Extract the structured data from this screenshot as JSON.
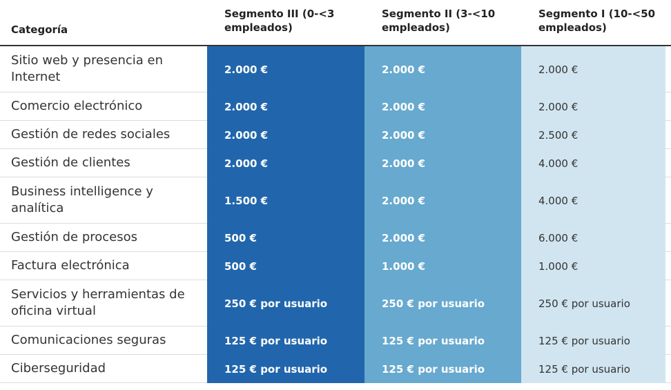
{
  "colors": {
    "segment_iii": "#2166ac",
    "segment_ii": "#67a9cf",
    "segment_i": "#d1e5f0"
  },
  "header": {
    "category": "Categoría",
    "segment_iii": "Segmento III (0-<3 empleados)",
    "segment_ii": "Segmento II (3-<10 empleados)",
    "segment_i": "Segmento I (10-<50 empleados)"
  },
  "rows": [
    {
      "category": "Sitio web y presencia en Internet",
      "segment_iii": "2.000 €",
      "segment_ii": "2.000 €",
      "segment_i": "2.000 €"
    },
    {
      "category": "Comercio electrónico",
      "segment_iii": "2.000 €",
      "segment_ii": "2.000 €",
      "segment_i": "2.000 €"
    },
    {
      "category": "Gestión de redes sociales",
      "segment_iii": "2.000 €",
      "segment_ii": "2.000 €",
      "segment_i": "2.500 €"
    },
    {
      "category": "Gestión de clientes",
      "segment_iii": "2.000 €",
      "segment_ii": "2.000 €",
      "segment_i": "4.000 €"
    },
    {
      "category": "Business intelligence y analítica",
      "segment_iii": "1.500 €",
      "segment_ii": "2.000 €",
      "segment_i": "4.000 €"
    },
    {
      "category": "Gestión de procesos",
      "segment_iii": "500 €",
      "segment_ii": "2.000 €",
      "segment_i": "6.000 €"
    },
    {
      "category": "Factura electrónica",
      "segment_iii": "500 €",
      "segment_ii": "1.000 €",
      "segment_i": "1.000 €"
    },
    {
      "category": "Servicios y herramientas de oficina virtual",
      "segment_iii": "250 € por usuario",
      "segment_ii": "250 € por usuario",
      "segment_i": "250 € por usuario"
    },
    {
      "category": "Comunicaciones seguras",
      "segment_iii": "125 € por usuario",
      "segment_ii": "125 € por usuario",
      "segment_i": "125 € por usuario"
    },
    {
      "category": "Ciberseguridad",
      "segment_iii": "125 € por usuario",
      "segment_ii": "125 € por usuario",
      "segment_i": "125 € por usuario"
    }
  ]
}
